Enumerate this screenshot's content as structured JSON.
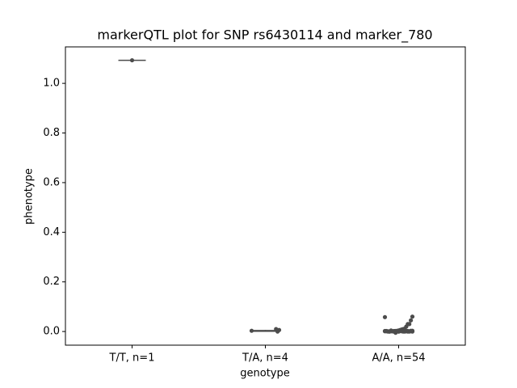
{
  "chart_data": {
    "type": "box",
    "title": "markerQTL plot for SNP rs6430114 and marker_780",
    "xlabel": "genotype",
    "ylabel": "phenotype",
    "categories": [
      "T/T, n=1",
      "T/A, n=4",
      "A/A, n=54"
    ],
    "boxes": [
      {
        "whislo": 1.093,
        "q1": 1.093,
        "med": 1.093,
        "q3": 1.093,
        "whishi": 1.093
      },
      {
        "whislo": 0.0,
        "q1": 0.001,
        "med": 0.002,
        "q3": 0.004,
        "whishi": 0.006
      },
      {
        "whislo": 0.0,
        "q1": 0.0,
        "med": 0.001,
        "q3": 0.002,
        "whishi": 0.004
      }
    ],
    "points": [
      [
        1.093
      ],
      [
        0.003,
        0.006,
        0.0,
        0.01
      ],
      [
        0.058,
        0.06,
        0.045,
        0.03,
        0.03,
        0.02,
        0.012,
        0.01,
        0.008,
        0.006,
        0.004,
        0.003,
        0.002,
        0.002,
        0.001,
        0.001,
        0.0,
        0.0,
        0.001,
        0.002,
        0.003,
        0.001,
        0.0,
        0.002,
        0.001,
        0.0,
        0.001,
        0.003,
        0.002,
        0.0,
        0.001,
        0.002,
        0.0,
        0.001,
        0.004,
        0.0,
        0.001,
        0.002,
        0.001,
        0.0,
        0.003,
        0.001,
        0.0,
        0.002,
        0.001,
        0.0,
        0.001,
        0.002,
        0.0,
        0.001,
        -0.005,
        0.0,
        0.001,
        0.002
      ]
    ],
    "color": "#4c4c4c",
    "ylim": [
      -0.055,
      1.147
    ],
    "yticks": [
      {
        "value": 0,
        "label": "0.0"
      },
      {
        "value": 0.2,
        "label": "0.2"
      },
      {
        "value": 0.4,
        "label": "0.4"
      },
      {
        "value": 0.6,
        "label": "0.6"
      },
      {
        "value": 0.8,
        "label": "0.8"
      },
      {
        "value": 1.0,
        "label": "1.0"
      }
    ]
  }
}
